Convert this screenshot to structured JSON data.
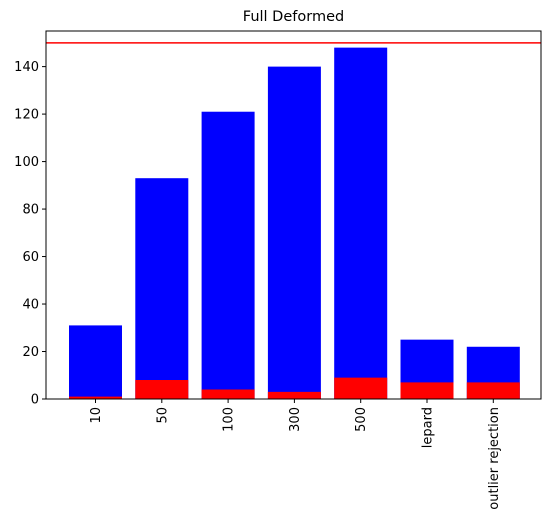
{
  "chart_data": {
    "type": "bar",
    "title": "Full Deformed",
    "xlabel": "",
    "ylabel": "",
    "categories": [
      "10",
      "50",
      "100",
      "300",
      "500",
      "lepard",
      "outlier rejection"
    ],
    "series": [
      {
        "color": "#0000ff",
        "values": [
          31,
          93,
          121,
          140,
          148,
          25,
          22
        ]
      },
      {
        "color": "#ff0000",
        "values": [
          1,
          8,
          4,
          3,
          9,
          7,
          7
        ]
      }
    ],
    "reference_line": {
      "y": 150,
      "color": "#ff0000"
    },
    "ylim": [
      0,
      155
    ],
    "yticks": [
      0,
      20,
      40,
      60,
      80,
      100,
      120,
      140
    ],
    "grid": false,
    "legend": "none",
    "xtick_rotation": "vertical"
  }
}
